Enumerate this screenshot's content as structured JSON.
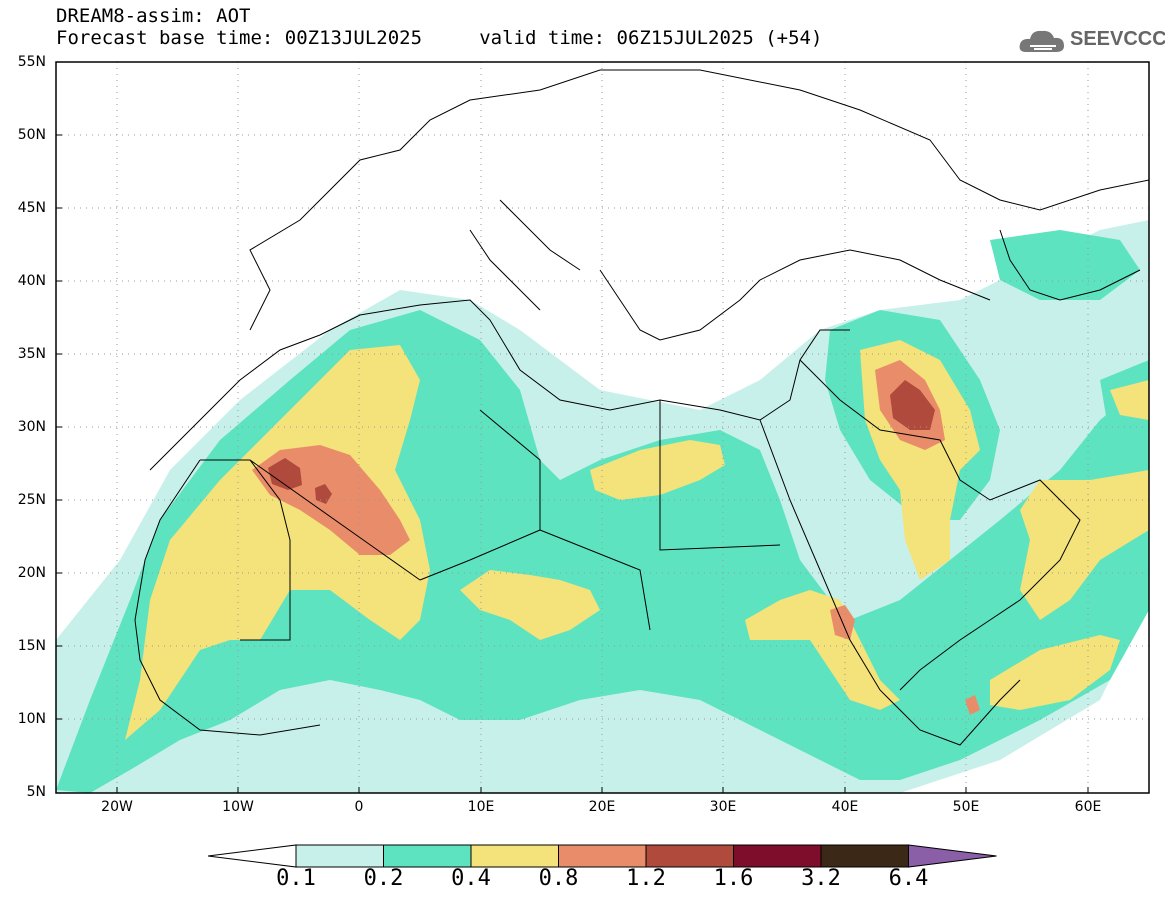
{
  "title": {
    "line1": "DREAM8-assim: AOT",
    "line2": "Forecast base time: 00Z13JUL2025     valid time: 06Z15JUL2025 (+54)"
  },
  "logo": {
    "text": "SEEVCCC",
    "icon": "cloud-icon"
  },
  "axes": {
    "lat_labels": [
      "55N",
      "50N",
      "45N",
      "40N",
      "35N",
      "30N",
      "25N",
      "20N",
      "15N",
      "10N",
      "5N"
    ],
    "lon_labels": [
      "20W",
      "10W",
      "0",
      "10E",
      "20E",
      "30E",
      "40E",
      "50E",
      "60E"
    ]
  },
  "colorbar": {
    "labels": [
      "0.1",
      "0.2",
      "0.4",
      "0.8",
      "1.2",
      "1.6",
      "3.2",
      "6.4"
    ],
    "colors": [
      "#c8f0ea",
      "#5ee3c0",
      "#f4e27a",
      "#e98c6a",
      "#b04a3c",
      "#7e0d2c",
      "#3b2816",
      "#8a5fa8"
    ],
    "under_color": "#ffffff"
  }
}
